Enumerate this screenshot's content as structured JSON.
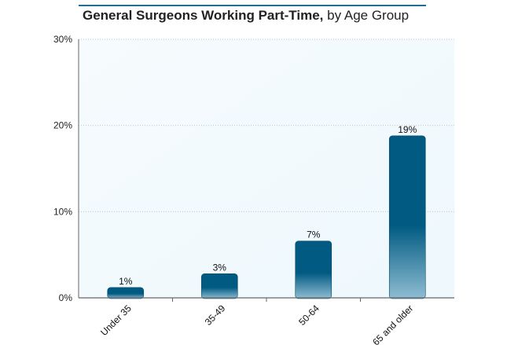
{
  "chart_data": {
    "type": "bar",
    "title": "General Surgeons Working Part-Time,",
    "subtitle": "by Age Group",
    "xlabel": "",
    "ylabel": "",
    "categories": [
      "Under 35",
      "35-49",
      "50-64",
      "65 and older"
    ],
    "values": [
      1.2,
      2.8,
      6.6,
      18.8
    ],
    "data_labels": [
      "1%",
      "3%",
      "7%",
      "19%"
    ],
    "ylim": [
      0,
      30
    ],
    "yticks": [
      0,
      10,
      20,
      30
    ],
    "ytick_labels": [
      "0%",
      "10%",
      "20%",
      "30%"
    ],
    "grid": true,
    "legend": "none",
    "colors": {
      "bar_top": "#005a82",
      "bar_bottom": "#8fbdd2",
      "plot_bg": "#eef8fd",
      "grid": "#b9c8cf",
      "axis": "#666666",
      "title_rule": "#1f6f93"
    }
  }
}
